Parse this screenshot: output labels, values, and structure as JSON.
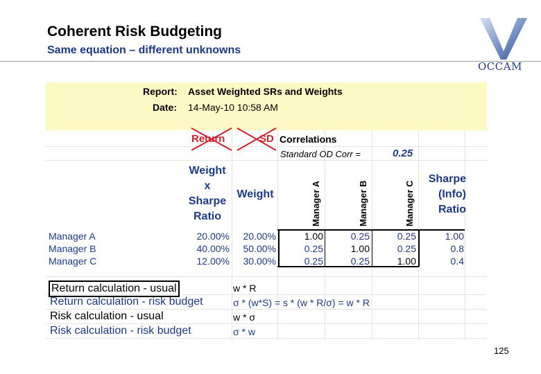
{
  "header": {
    "title": "Coherent Risk Budgeting",
    "subtitle": "Same equation – different unknowns",
    "logo_text": "OCCAM",
    "colors": {
      "title_blue": "#1b3a8c",
      "cross_red": "#d0202a",
      "report_yellow": "#fdf9c4"
    }
  },
  "report": {
    "report_label": "Report:",
    "report_value": "Asset Weighted SRs and Weights",
    "date_label": "Date:",
    "date_value": "14-May-10 10:58 AM"
  },
  "crossed_out": {
    "return": "Return",
    "sd": "SD"
  },
  "correlations": {
    "title": "Correlations",
    "std_label": "Standard OD Corr =",
    "std_value": "0.25"
  },
  "columns": {
    "weight_x_sharpe": [
      "Weight",
      "x",
      "Sharpe",
      "Ratio"
    ],
    "weight": "Weight",
    "manager_a": "Manager A",
    "manager_b": "Manager B",
    "manager_c": "Manager C",
    "sharpe_info": [
      "Sharpe",
      "(Info)",
      "Ratio"
    ]
  },
  "rows": [
    {
      "name": "Manager A",
      "wsr": "20.00%",
      "weight": "20.00%",
      "a": "1.00",
      "b": "0.25",
      "c": "0.25",
      "sharpe": "1.00"
    },
    {
      "name": "Manager B",
      "wsr": "40.00%",
      "weight": "50.00%",
      "a": "0.25",
      "b": "1.00",
      "c": "0.25",
      "sharpe": "0.8"
    },
    {
      "name": "Manager C",
      "wsr": "12.00%",
      "weight": "30.00%",
      "a": "0.25",
      "b": "0.25",
      "c": "1.00",
      "sharpe": "0.4"
    }
  ],
  "calculations": [
    {
      "label": "Return calculation - usual",
      "formula": "w * R"
    },
    {
      "label": "Return calculation - risk budget",
      "formula": "σ * (w*S) = s * (w * R/σ) = w * R"
    },
    {
      "label": "Risk calculation - usual",
      "formula": "w * σ"
    },
    {
      "label": "Risk calculation - risk budget",
      "formula": "σ * w"
    }
  ],
  "page_number": "125"
}
